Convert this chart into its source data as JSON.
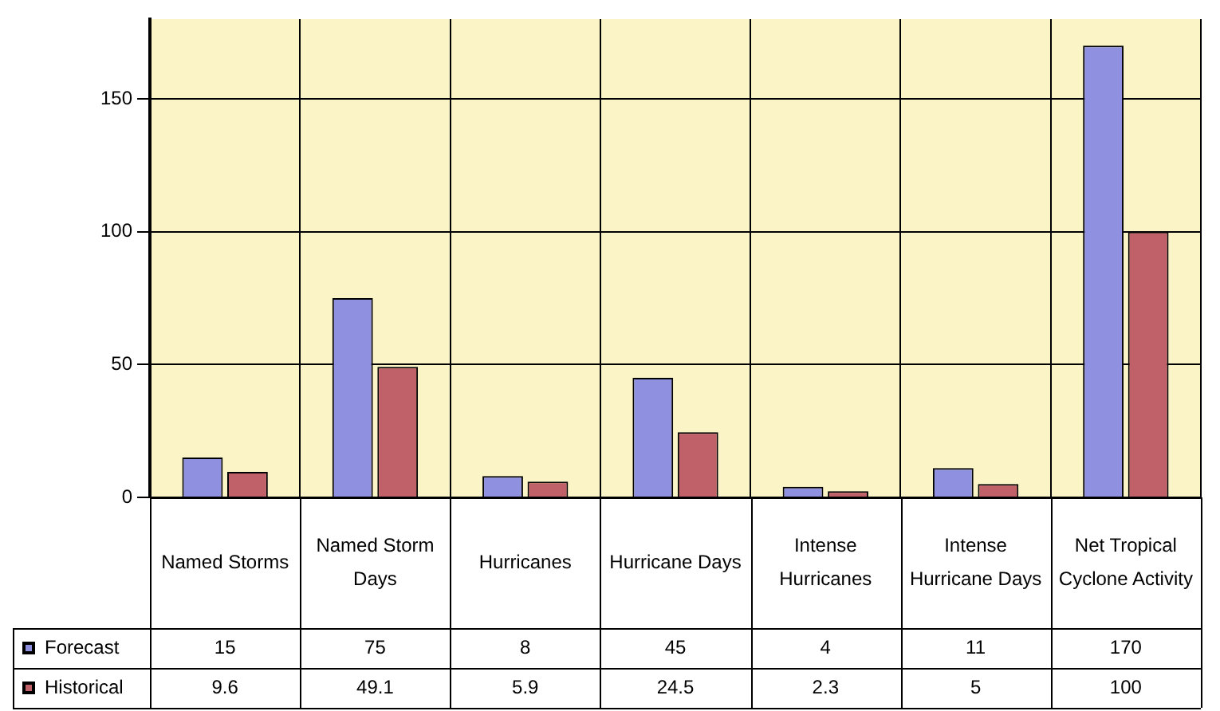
{
  "chart_data": {
    "type": "bar",
    "categories": [
      "Named Storms",
      "Named Storm Days",
      "Hurricanes",
      "Hurricane Days",
      "Intense Hurricanes",
      "Intense Hurricane Days",
      "Net Tropical Cyclone Activity"
    ],
    "series": [
      {
        "name": "Forecast",
        "color": "#9090e0",
        "values": [
          15,
          75,
          8,
          45,
          4,
          11,
          170
        ]
      },
      {
        "name": "Historical",
        "color": "#c06068",
        "values": [
          9.6,
          49.1,
          5.9,
          24.5,
          2.3,
          5,
          100
        ]
      }
    ],
    "ylim": [
      0,
      180
    ],
    "yticks": [
      0,
      50,
      100,
      150
    ],
    "grid": true,
    "legend": "bottom",
    "data_labels": true
  }
}
